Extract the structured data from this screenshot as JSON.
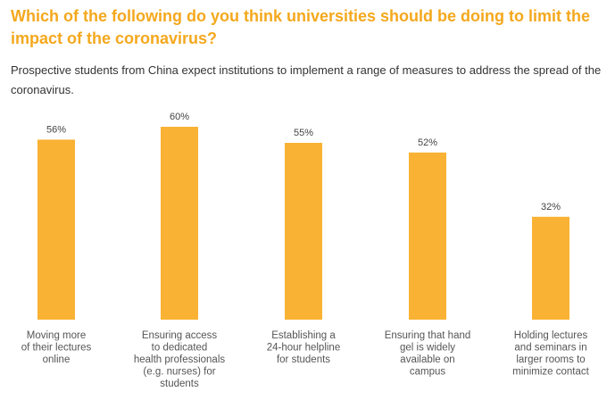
{
  "header": {
    "title": "Which of the following do you think universities should be doing to limit the impact of the coronavirus?",
    "subtitle": "Prospective students from China expect institutions to implement a range of measures to address the spread of the coronavirus."
  },
  "colors": {
    "bar": "#f9b233",
    "title": "#f4a81d"
  },
  "chart_data": {
    "type": "bar",
    "title": "",
    "xlabel": "",
    "ylabel": "",
    "ylim": [
      0,
      60
    ],
    "grid": false,
    "legend": "none",
    "categories": [
      "Moving more of their lectures online",
      "Ensuring access to dedicated health professionals (e.g. nurses) for students",
      "Establishing a 24-hour helpline for students",
      "Ensuring that hand gel is widely available on campus",
      "Holding lectures and seminars in larger rooms to minimize contact"
    ],
    "category_lines": [
      [
        "Moving more",
        "of their lectures",
        "online"
      ],
      [
        "Ensuring access",
        "to dedicated",
        "health professionals",
        "(e.g. nurses) for",
        "students"
      ],
      [
        "Establishing a",
        "24-hour helpline",
        "for students"
      ],
      [
        "Ensuring that hand",
        "gel is widely",
        "available on",
        "campus"
      ],
      [
        "Holding lectures",
        "and seminars in",
        "larger rooms to",
        "minimize contact"
      ]
    ],
    "values": [
      56,
      60,
      55,
      52,
      32
    ],
    "value_labels": [
      "56%",
      "60%",
      "55%",
      "52%",
      "32%"
    ]
  }
}
